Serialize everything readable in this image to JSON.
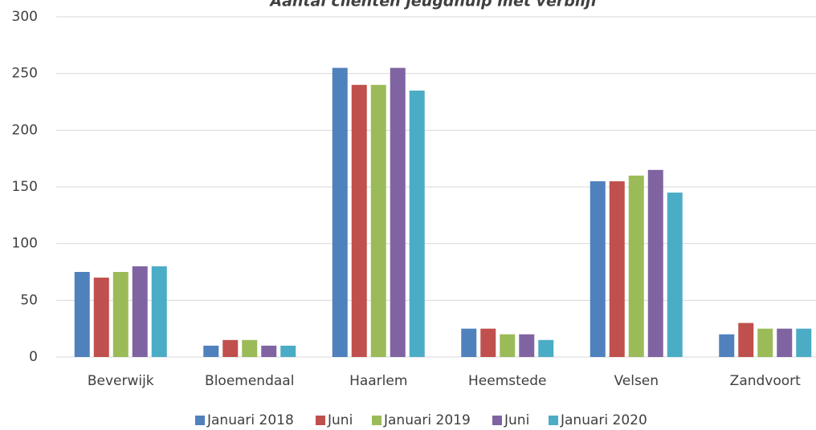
{
  "chart_data": {
    "type": "bar",
    "title": "Aantal cliënten jeugdhulp met verblijf",
    "categories": [
      "Beverwijk",
      "Bloemendaal",
      "Haarlem",
      "Heemstede",
      "Velsen",
      "Zandvoort"
    ],
    "series": [
      {
        "name": "Januari 2018",
        "color": "#4f81bd",
        "values": [
          75,
          10,
          255,
          25,
          155,
          20
        ]
      },
      {
        "name": "Juni",
        "color": "#c0504d",
        "values": [
          70,
          15,
          240,
          25,
          155,
          30
        ]
      },
      {
        "name": "Januari 2019",
        "color": "#9bbb59",
        "values": [
          75,
          15,
          240,
          20,
          160,
          25
        ]
      },
      {
        "name": "Juni",
        "color": "#8064a2",
        "values": [
          80,
          10,
          255,
          20,
          165,
          25
        ]
      },
      {
        "name": "Januari 2020",
        "color": "#4bacc6",
        "values": [
          80,
          10,
          235,
          15,
          145,
          25
        ]
      }
    ],
    "ylim": [
      0,
      300
    ],
    "yticks": [
      0,
      50,
      100,
      150,
      200,
      250,
      300
    ],
    "grid": true,
    "legend": "bottom"
  }
}
